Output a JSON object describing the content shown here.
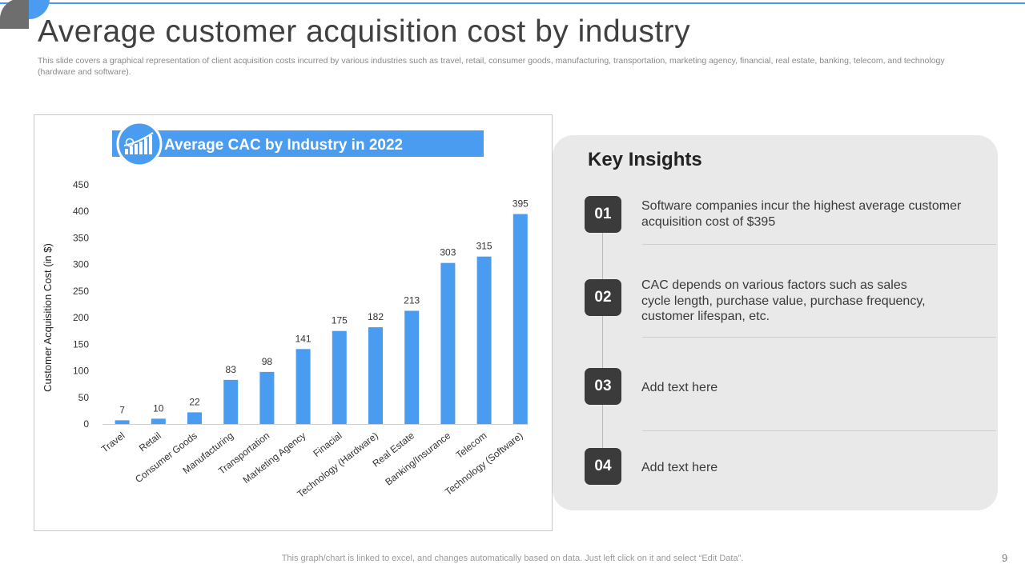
{
  "slide": {
    "title": "Average customer acquisition cost by industry",
    "subtitle": "This slide covers a graphical representation of client acquisition costs incurred by various industries such as travel, retail, consumer goods, manufacturing, transportation, marketing agency, financial, real estate, banking, telecom, and technology (hardware and software).",
    "footer": "This graph/chart is linked to excel,  and changes automatically based on data. Just left click on it and select “Edit Data”.",
    "page_number": "9"
  },
  "colors": {
    "accent": "#4a9cf0",
    "bar": "#4a9cf0",
    "badge": "#3b3b3b",
    "panel": "#e9e9e9"
  },
  "chart_data": {
    "type": "bar",
    "title": "Average CAC by Industry in 2022",
    "title_icon": "growth-chart-icon",
    "ylabel": "Customer Acquisition Cost (in $)",
    "xlabel": "",
    "ylim": [
      0,
      450
    ],
    "yticks": [
      0,
      50,
      100,
      150,
      200,
      250,
      300,
      350,
      400,
      450
    ],
    "grid": false,
    "legend": "none",
    "categories": [
      "Travel",
      "Retail",
      "Consumer Goods",
      "Manufacturing",
      "Transportation",
      "Marketing Agency",
      "Finacial",
      "Technology (Hardware)",
      "Real Estate",
      "Banking/Insurance",
      "Telecom",
      "Technology (Software)"
    ],
    "values": [
      7,
      10,
      22,
      83,
      98,
      141,
      175,
      182,
      213,
      303,
      315,
      395
    ]
  },
  "insights": {
    "title": "Key Insights",
    "items": [
      {
        "number": "01",
        "text": "Software companies incur the highest average customer acquisition cost of $395"
      },
      {
        "number": "02",
        "text": "CAC depends on various factors such as sales cycle length, purchase value, purchase frequency, customer lifespan, etc."
      },
      {
        "number": "03",
        "text": "Add text here"
      },
      {
        "number": "04",
        "text": "Add text here"
      }
    ]
  }
}
